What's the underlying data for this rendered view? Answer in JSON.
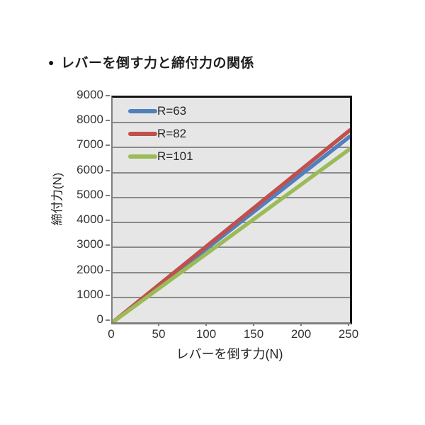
{
  "page": {
    "title_bullet": "●",
    "title": "レバーを倒す力と締付力の関係"
  },
  "chart_data": {
    "type": "line",
    "title": "レバーを倒す力と締付力の関係",
    "xlabel": "レバーを倒す力(N)",
    "ylabel": "締付力(N)",
    "xlim": [
      0,
      250
    ],
    "ylim": [
      0,
      9000
    ],
    "xticks": [
      0,
      50,
      100,
      150,
      200,
      250
    ],
    "yticks": [
      0,
      1000,
      2000,
      3000,
      4000,
      5000,
      6000,
      7000,
      8000,
      9000
    ],
    "grid": "horizontal-only",
    "legend_position": "top-left-inside",
    "x": [
      0,
      50,
      100,
      150,
      200,
      250
    ],
    "series": [
      {
        "name": "R=63",
        "color": "#4F81BD",
        "values": [
          0,
          1490,
          2980,
          4470,
          5960,
          7450
        ]
      },
      {
        "name": "R=82",
        "color": "#C0504D",
        "values": [
          0,
          1540,
          3080,
          4620,
          6160,
          7700
        ]
      },
      {
        "name": "R=101",
        "color": "#9BBB59",
        "values": [
          0,
          1390,
          2780,
          4170,
          5560,
          6950
        ]
      }
    ],
    "colors": {
      "plot_background": "#E7E6E6",
      "gridline": "#8A8A8A",
      "border_dark": "#141414",
      "border_gray": "#7F7F7F",
      "text": "#262626"
    }
  }
}
